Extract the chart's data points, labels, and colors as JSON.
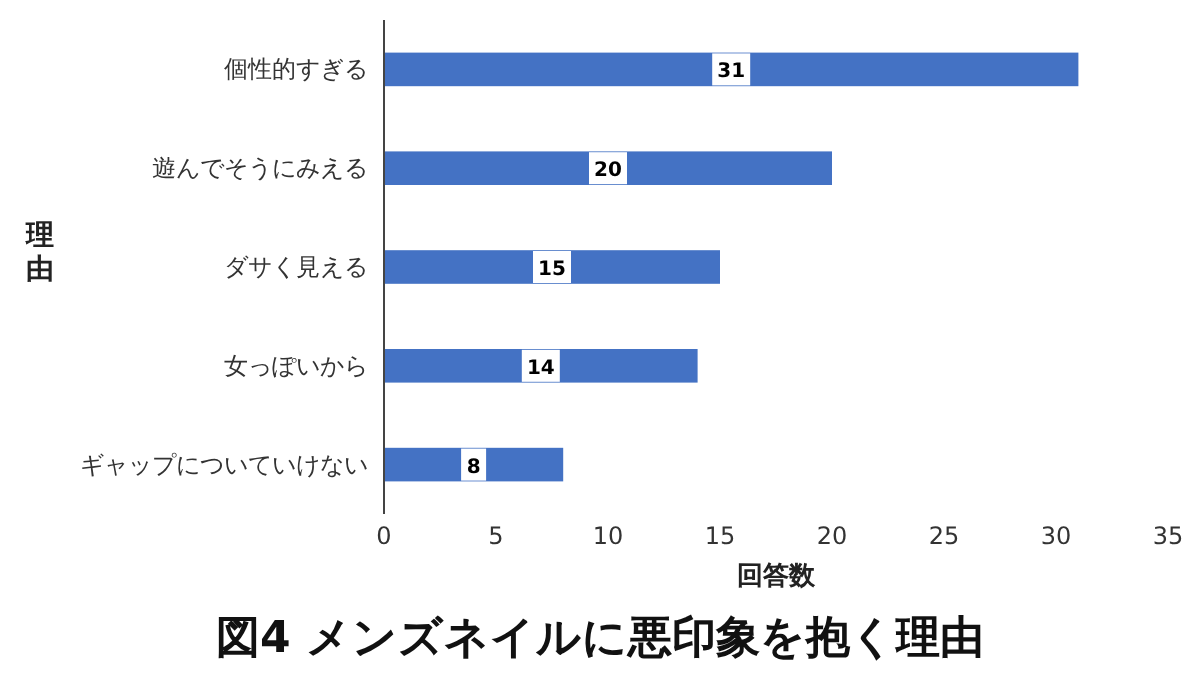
{
  "chart_data": {
    "type": "bar",
    "orientation": "horizontal",
    "title": "図4 メンズネイルに悪印象を抱く理由",
    "xlabel": "回答数",
    "ylabel": "理由",
    "categories": [
      "個性的すぎる",
      "遊んでそうにみえる",
      "ダサく見える",
      "女っぽいから",
      "ギャップについていけない"
    ],
    "values": [
      31,
      20,
      15,
      14,
      8
    ],
    "color": "#4472c4",
    "xlim": [
      0,
      35
    ],
    "xticks": [
      0,
      5,
      10,
      15,
      20,
      25,
      30,
      35
    ],
    "data_labels": true,
    "grid": false
  }
}
